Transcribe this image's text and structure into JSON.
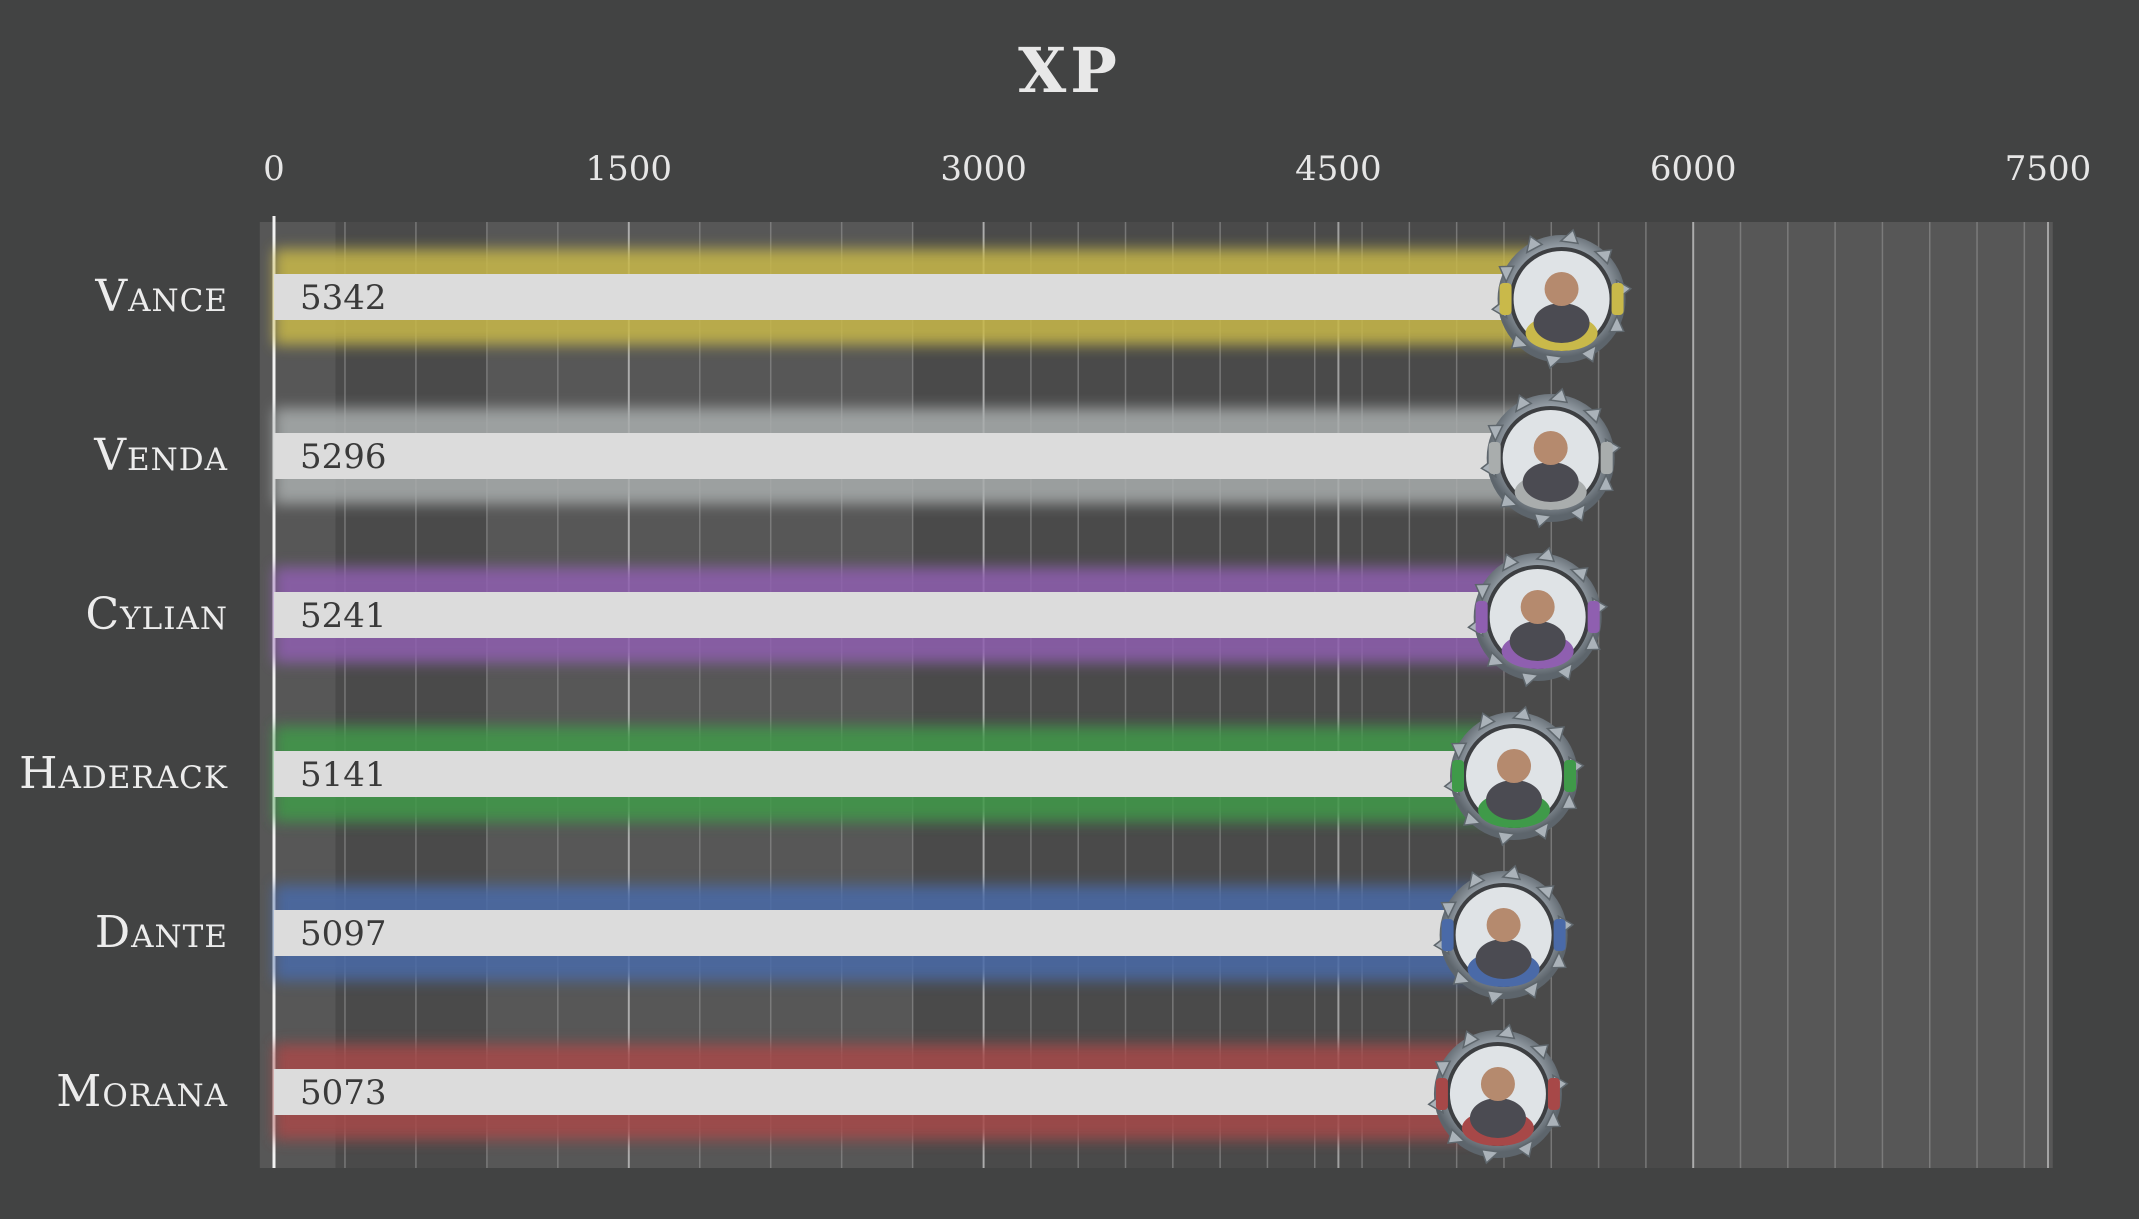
{
  "chart_data": {
    "type": "bar",
    "orientation": "horizontal",
    "title": "XP",
    "xlim": [
      0,
      7500
    ],
    "xticks": [
      "0",
      "1500",
      "3000",
      "4500",
      "6000",
      "7500"
    ],
    "categories": [
      "Vance",
      "Venda",
      "Cylian",
      "Haderack",
      "Dante",
      "Morana"
    ],
    "values": [
      5342,
      5296,
      5241,
      5141,
      5097,
      5073
    ],
    "bar_color": "#dcdcdc",
    "glow_colors": [
      "#c9b94a",
      "#a9adad",
      "#8f5fb0",
      "#3f9a49",
      "#4a6aa8",
      "#a74848"
    ],
    "portrait_icons": [
      "portrait-vance-icon",
      "portrait-venda-icon",
      "portrait-cylian-icon",
      "portrait-haderack-icon",
      "portrait-dante-icon",
      "portrait-morana-icon"
    ],
    "colors": {
      "background": "#424343",
      "plot_background": "#4a4a4a",
      "gridline": "#8c8c8c",
      "text": "#e6e6e6"
    },
    "grid": true,
    "legend": "none"
  }
}
